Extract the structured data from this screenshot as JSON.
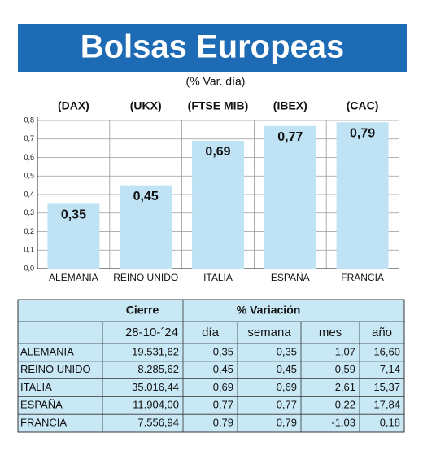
{
  "chart_data": {
    "type": "bar",
    "title": "Bolsas Europeas",
    "subtitle": "(% Var. día)",
    "indices": [
      "(DAX)",
      "(UKX)",
      "(FTSE MIB)",
      "(IBEX)",
      "(CAC)"
    ],
    "categories": [
      "ALEMANIA",
      "REINO UNIDO",
      "ITALIA",
      "ESPAÑA",
      "FRANCIA"
    ],
    "values": [
      0.35,
      0.45,
      0.69,
      0.77,
      0.79
    ],
    "value_labels": [
      "0,35",
      "0,45",
      "0,69",
      "0,77",
      "0,79"
    ],
    "color": "#bfe3f5",
    "ylim": [
      0,
      0.8
    ],
    "yticks": [
      {
        "value": 0,
        "label": "0,0"
      },
      {
        "value": 0.1,
        "label": "0,1"
      },
      {
        "value": 0.2,
        "label": "0,2"
      },
      {
        "value": 0.3,
        "label": "0,3"
      },
      {
        "value": 0.4,
        "label": "0,4"
      },
      {
        "value": 0.5,
        "label": "0,5"
      },
      {
        "value": 0.6,
        "label": "0,6"
      },
      {
        "value": 0.7,
        "label": "0,7"
      },
      {
        "value": 0.8,
        "label": "0,8"
      }
    ],
    "grid": true
  },
  "table": {
    "header": [
      "Cierre",
      "% Variación"
    ],
    "columns": [
      "28-10-´24",
      "día",
      "semana",
      "mes",
      "año"
    ],
    "rows": [
      [
        "ALEMANIA",
        "19.531,62",
        "0,35",
        "0,35",
        "1,07",
        "16,60"
      ],
      [
        "REINO UNIDO",
        "8.285,62",
        "0,45",
        "0,45",
        "0,59",
        "7,14"
      ],
      [
        "ITALIA",
        "35.016,44",
        "0,69",
        "0,69",
        "2,61",
        "15,37"
      ],
      [
        "ESPAÑA",
        "11.904,00",
        "0,77",
        "0,77",
        "0,22",
        "17,84"
      ],
      [
        "FRANCIA",
        "7.556,94",
        "0,79",
        "0,79",
        "-1,03",
        "0,18"
      ]
    ]
  }
}
